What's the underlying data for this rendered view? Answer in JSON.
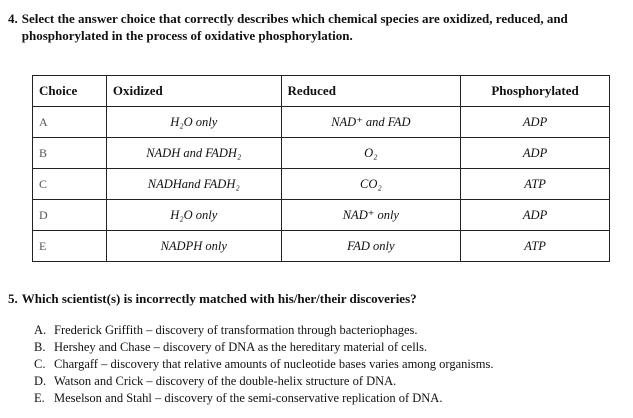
{
  "question4": {
    "number": "4.",
    "text": "Select the answer choice that correctly describes which chemical species are oxidized, reduced, and phosphorylated in the process of oxidative phosphorylation.",
    "headers": [
      "Choice",
      "Oxidized",
      "Reduced",
      "Phosphorylated"
    ],
    "rows": [
      {
        "choice": "A",
        "oxidized": "H₂O only",
        "reduced": "NAD⁺ and FAD",
        "phosphorylated": "ADP"
      },
      {
        "choice": "B",
        "oxidized": "NADH and FADH₂",
        "reduced": "O₂",
        "phosphorylated": "ADP"
      },
      {
        "choice": "C",
        "oxidized": "NADHand FADH₂",
        "reduced": "CO₂",
        "phosphorylated": "ATP"
      },
      {
        "choice": "D",
        "oxidized": "H₂O only",
        "reduced": "NAD⁺ only",
        "phosphorylated": "ADP"
      },
      {
        "choice": "E",
        "oxidized": "NADPH only",
        "reduced": "FAD only",
        "phosphorylated": "ATP"
      }
    ]
  },
  "question5": {
    "number": "5.",
    "text": "Which scientist(s) is incorrectly matched with his/her/their discoveries?",
    "options": [
      {
        "letter": "A.",
        "text": "Frederick Griffith – discovery of transformation through bacteriophages."
      },
      {
        "letter": "B.",
        "text": "Hershey and Chase – discovery of DNA as the hereditary material of cells."
      },
      {
        "letter": "C.",
        "text": "Chargaff – discovery that relative amounts of nucleotide bases varies among organisms."
      },
      {
        "letter": "D.",
        "text": "Watson and Crick – discovery of the double-helix structure of DNA."
      },
      {
        "letter": "E.",
        "text": "Meselson and Stahl – discovery of the semi-conservative replication of DNA."
      }
    ]
  }
}
